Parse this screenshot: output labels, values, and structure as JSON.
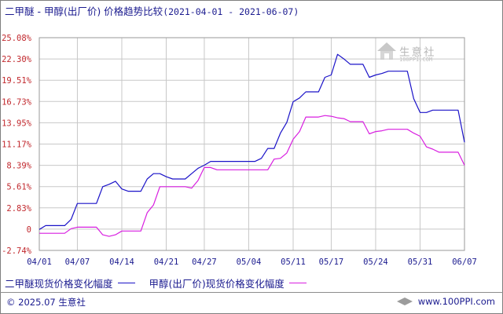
{
  "title": {
    "text": "二甲醚 - 甲醇(出厂价) 价格趋势比较",
    "range": "(2021-04-01 - 2021-06-07)"
  },
  "watermark": {
    "brand": "生意社",
    "url": "100PPI.COM"
  },
  "footer": {
    "copyright": "© 2025.07 生意社",
    "site": "www.100PPI.com"
  },
  "colors": {
    "series1": "#1a12c8",
    "series2": "#d81ee0",
    "ytick": "#c1282d",
    "xtick": "#1b1b8f",
    "grid": "#c8c8c8"
  },
  "chart_data": {
    "type": "line",
    "title": "二甲醚 - 甲醇(出厂价) 价格趋势比较",
    "xlabel": "",
    "ylabel": "",
    "x_ticks": [
      "04/01",
      "04/07",
      "04/14",
      "04/21",
      "04/27",
      "05/04",
      "05/11",
      "05/17",
      "05/24",
      "05/31",
      "06/07"
    ],
    "y_ticks": [
      "25.08%",
      "22.30%",
      "19.51%",
      "16.73%",
      "13.95%",
      "11.17%",
      "8.39%",
      "5.61%",
      "2.83%",
      "0",
      "-2.74%"
    ],
    "ylim": [
      -2.74,
      25.08
    ],
    "grid": true,
    "legend_position": "bottom",
    "series": [
      {
        "name": "二甲醚现货价格变化幅度",
        "points": [
          [
            "04/01",
            0
          ],
          [
            "04/02",
            0.5
          ],
          [
            "04/05",
            0.5
          ],
          [
            "04/06",
            1.3
          ],
          [
            "04/07",
            3.4
          ],
          [
            "04/10",
            3.4
          ],
          [
            "04/11",
            5.6
          ],
          [
            "04/12",
            5.9
          ],
          [
            "04/13",
            6.3
          ],
          [
            "04/14",
            5.3
          ],
          [
            "04/15",
            5.0
          ],
          [
            "04/17",
            5.0
          ],
          [
            "04/18",
            6.6
          ],
          [
            "04/19",
            7.3
          ],
          [
            "04/20",
            7.3
          ],
          [
            "04/21",
            6.9
          ],
          [
            "04/22",
            6.6
          ],
          [
            "04/24",
            6.6
          ],
          [
            "04/25",
            7.3
          ],
          [
            "04/26",
            8.0
          ],
          [
            "04/27",
            8.4
          ],
          [
            "04/28",
            8.9
          ],
          [
            "05/05",
            8.9
          ],
          [
            "05/06",
            9.3
          ],
          [
            "05/07",
            10.6
          ],
          [
            "05/08",
            10.6
          ],
          [
            "05/09",
            12.6
          ],
          [
            "05/10",
            14.0
          ],
          [
            "05/11",
            16.7
          ],
          [
            "05/12",
            17.2
          ],
          [
            "05/13",
            18.0
          ],
          [
            "05/15",
            18.0
          ],
          [
            "05/16",
            19.9
          ],
          [
            "05/17",
            20.2
          ],
          [
            "05/18",
            22.9
          ],
          [
            "05/19",
            22.3
          ],
          [
            "05/20",
            21.6
          ],
          [
            "05/22",
            21.6
          ],
          [
            "05/23",
            19.9
          ],
          [
            "05/24",
            20.2
          ],
          [
            "05/25",
            20.4
          ],
          [
            "05/26",
            20.7
          ],
          [
            "05/29",
            20.7
          ],
          [
            "05/30",
            17.1
          ],
          [
            "05/31",
            15.3
          ],
          [
            "06/01",
            15.3
          ],
          [
            "06/02",
            15.6
          ],
          [
            "06/06",
            15.6
          ],
          [
            "06/07",
            11.4
          ]
        ]
      },
      {
        "name": "甲醇(出厂价)现货价格变化幅度",
        "points": [
          [
            "04/01",
            -0.5
          ],
          [
            "04/05",
            -0.5
          ],
          [
            "04/06",
            0.1
          ],
          [
            "04/07",
            0.3
          ],
          [
            "04/10",
            0.3
          ],
          [
            "04/11",
            -0.7
          ],
          [
            "04/12",
            -0.9
          ],
          [
            "04/13",
            -0.7
          ],
          [
            "04/14",
            -0.2
          ],
          [
            "04/17",
            -0.2
          ],
          [
            "04/18",
            2.2
          ],
          [
            "04/19",
            3.2
          ],
          [
            "04/20",
            5.6
          ],
          [
            "04/24",
            5.6
          ],
          [
            "04/25",
            5.4
          ],
          [
            "04/26",
            6.4
          ],
          [
            "04/27",
            8.1
          ],
          [
            "04/28",
            8.1
          ],
          [
            "04/29",
            7.8
          ],
          [
            "05/07",
            7.8
          ],
          [
            "05/08",
            9.2
          ],
          [
            "05/09",
            9.3
          ],
          [
            "05/10",
            10.0
          ],
          [
            "05/11",
            11.8
          ],
          [
            "05/12",
            12.8
          ],
          [
            "05/13",
            14.7
          ],
          [
            "05/15",
            14.7
          ],
          [
            "05/16",
            14.9
          ],
          [
            "05/17",
            14.8
          ],
          [
            "05/18",
            14.6
          ],
          [
            "05/19",
            14.5
          ],
          [
            "05/20",
            14.1
          ],
          [
            "05/22",
            14.1
          ],
          [
            "05/23",
            12.5
          ],
          [
            "05/24",
            12.8
          ],
          [
            "05/25",
            12.9
          ],
          [
            "05/26",
            13.1
          ],
          [
            "05/29",
            13.1
          ],
          [
            "05/30",
            12.6
          ],
          [
            "05/31",
            12.2
          ],
          [
            "06/01",
            10.8
          ],
          [
            "06/02",
            10.5
          ],
          [
            "06/03",
            10.1
          ],
          [
            "06/06",
            10.1
          ],
          [
            "06/07",
            8.4
          ]
        ]
      }
    ]
  }
}
